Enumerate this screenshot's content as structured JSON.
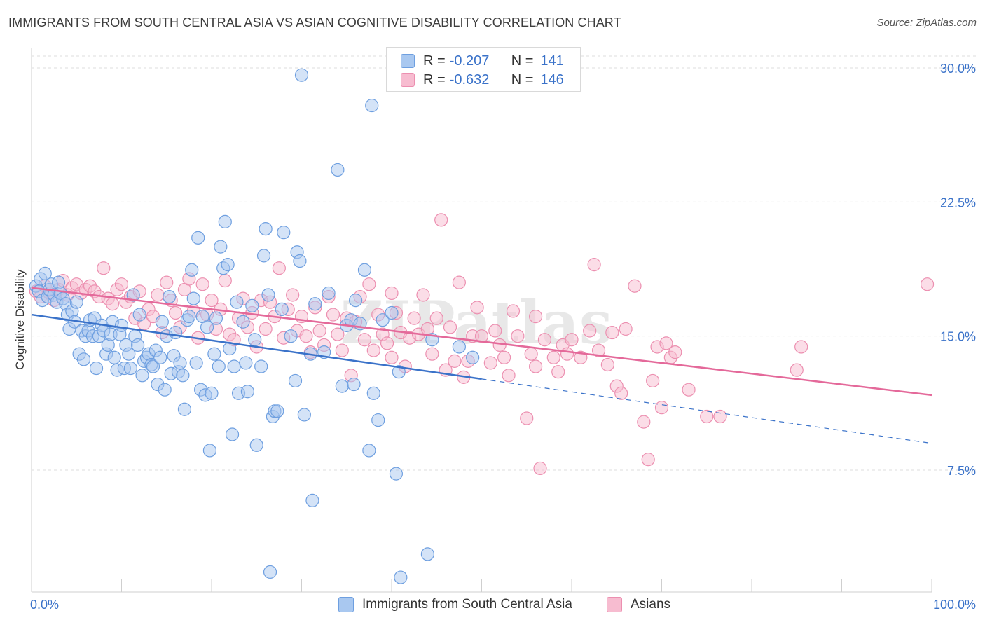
{
  "header": {
    "title": "IMMIGRANTS FROM SOUTH CENTRAL ASIA VS ASIAN COGNITIVE DISABILITY CORRELATION CHART",
    "source": "Source: ZipAtlas.com"
  },
  "legend": {
    "series1": {
      "r_label": "R =",
      "r_value": "-0.207",
      "n_label": "N =",
      "n_value": "141"
    },
    "series2": {
      "r_label": "R =",
      "r_value": "-0.632",
      "n_label": "N =",
      "n_value": "146"
    }
  },
  "colors": {
    "blue_fill": "#a9c8f0",
    "blue_stroke": "#6e9fe0",
    "blue_line": "#3a72c9",
    "pink_fill": "#f7bcd0",
    "pink_stroke": "#ec8fb0",
    "pink_line": "#e4699a",
    "value_text": "#3a72c9",
    "grid": "#dcdcdc"
  },
  "chart_data": {
    "type": "scatter",
    "title": "IMMIGRANTS FROM SOUTH CENTRAL ASIA VS ASIAN COGNITIVE DISABILITY CORRELATION CHART",
    "xlabel": "",
    "ylabel": "Cognitive Disability",
    "xlim": [
      0,
      100
    ],
    "ylim": [
      0,
      31
    ],
    "x_tick_labels": [
      "0.0%",
      "100.0%"
    ],
    "y_ticks": [
      7.5,
      15.0,
      22.5,
      30.0
    ],
    "y_tick_labels": [
      "7.5%",
      "15.0%",
      "22.5%",
      "30.0%"
    ],
    "grid": true,
    "legend_position": "top-center",
    "watermark": "ZIPatlas",
    "series": [
      {
        "name": "Immigrants from South Central Asia",
        "color": "#6e9fe0",
        "trend": {
          "x0": 0,
          "y0": 16.2,
          "x1": 50,
          "y1": 12.6,
          "dashed_to_x": 100,
          "dashed_to_y": 9.0
        },
        "points": [
          [
            0.5,
            17.8
          ],
          [
            0.8,
            17.5
          ],
          [
            1.0,
            18.2
          ],
          [
            1.2,
            17.0
          ],
          [
            1.5,
            18.5
          ],
          [
            1.8,
            17.2
          ],
          [
            2.0,
            17.6
          ],
          [
            2.2,
            17.9
          ],
          [
            2.5,
            17.3
          ],
          [
            2.8,
            16.9
          ],
          [
            3.0,
            18.0
          ],
          [
            3.2,
            17.4
          ],
          [
            3.5,
            17.1
          ],
          [
            3.8,
            16.8
          ],
          [
            4.0,
            16.2
          ],
          [
            4.2,
            15.4
          ],
          [
            4.5,
            16.4
          ],
          [
            4.8,
            15.8
          ],
          [
            5.0,
            16.9
          ],
          [
            5.3,
            14.0
          ],
          [
            5.6,
            15.3
          ],
          [
            5.8,
            13.7
          ],
          [
            6.0,
            15.0
          ],
          [
            6.3,
            15.3
          ],
          [
            6.5,
            15.9
          ],
          [
            6.8,
            15.0
          ],
          [
            7.0,
            16.0
          ],
          [
            7.2,
            13.2
          ],
          [
            7.5,
            15.0
          ],
          [
            7.8,
            15.6
          ],
          [
            8.0,
            15.3
          ],
          [
            8.3,
            14.0
          ],
          [
            8.5,
            14.5
          ],
          [
            8.8,
            15.1
          ],
          [
            9.0,
            15.8
          ],
          [
            9.2,
            13.8
          ],
          [
            9.5,
            13.1
          ],
          [
            9.8,
            15.1
          ],
          [
            10.0,
            15.6
          ],
          [
            10.3,
            13.2
          ],
          [
            10.5,
            14.5
          ],
          [
            10.8,
            14.0
          ],
          [
            11.0,
            13.2
          ],
          [
            11.3,
            17.3
          ],
          [
            11.5,
            15.0
          ],
          [
            11.8,
            14.5
          ],
          [
            12.0,
            16.2
          ],
          [
            12.3,
            12.8
          ],
          [
            12.5,
            13.6
          ],
          [
            12.8,
            13.8
          ],
          [
            13.0,
            14.0
          ],
          [
            13.3,
            13.4
          ],
          [
            13.5,
            13.3
          ],
          [
            13.8,
            14.2
          ],
          [
            14.0,
            12.3
          ],
          [
            14.3,
            13.8
          ],
          [
            14.5,
            15.8
          ],
          [
            14.8,
            12.0
          ],
          [
            15.0,
            15.0
          ],
          [
            15.3,
            17.2
          ],
          [
            15.5,
            12.9
          ],
          [
            15.8,
            13.9
          ],
          [
            16.0,
            15.2
          ],
          [
            16.3,
            13.0
          ],
          [
            16.5,
            13.5
          ],
          [
            16.8,
            12.8
          ],
          [
            17.0,
            10.9
          ],
          [
            17.3,
            15.9
          ],
          [
            17.5,
            16.1
          ],
          [
            17.8,
            18.7
          ],
          [
            18.0,
            17.1
          ],
          [
            18.3,
            13.5
          ],
          [
            18.5,
            20.5
          ],
          [
            18.8,
            12.0
          ],
          [
            19.0,
            16.1
          ],
          [
            19.3,
            11.7
          ],
          [
            19.5,
            15.5
          ],
          [
            19.8,
            8.6
          ],
          [
            20.0,
            11.8
          ],
          [
            20.3,
            14.0
          ],
          [
            20.5,
            16.0
          ],
          [
            20.8,
            13.3
          ],
          [
            21.0,
            20.0
          ],
          [
            21.3,
            18.8
          ],
          [
            21.5,
            21.4
          ],
          [
            21.8,
            19.0
          ],
          [
            22.0,
            14.3
          ],
          [
            22.3,
            9.5
          ],
          [
            22.5,
            13.3
          ],
          [
            22.8,
            16.9
          ],
          [
            23.0,
            11.8
          ],
          [
            23.5,
            15.8
          ],
          [
            23.8,
            13.5
          ],
          [
            24.0,
            11.9
          ],
          [
            24.5,
            16.7
          ],
          [
            24.8,
            14.8
          ],
          [
            25.0,
            8.9
          ],
          [
            25.5,
            13.3
          ],
          [
            25.8,
            19.5
          ],
          [
            26.0,
            21.0
          ],
          [
            26.3,
            17.3
          ],
          [
            26.8,
            10.5
          ],
          [
            27.0,
            10.8
          ],
          [
            27.3,
            10.8
          ],
          [
            27.8,
            16.5
          ],
          [
            28.0,
            20.8
          ],
          [
            28.8,
            15.0
          ],
          [
            29.3,
            12.5
          ],
          [
            29.5,
            19.7
          ],
          [
            29.8,
            19.2
          ],
          [
            30.0,
            29.6
          ],
          [
            30.3,
            10.6
          ],
          [
            31.0,
            14.0
          ],
          [
            31.2,
            5.8
          ],
          [
            31.5,
            16.8
          ],
          [
            32.5,
            14.1
          ],
          [
            33.0,
            17.4
          ],
          [
            34.0,
            24.3
          ],
          [
            34.5,
            12.2
          ],
          [
            35.0,
            15.6
          ],
          [
            35.5,
            15.9
          ],
          [
            36.0,
            17.0
          ],
          [
            36.5,
            15.7
          ],
          [
            37.0,
            18.7
          ],
          [
            37.5,
            8.6
          ],
          [
            37.8,
            27.9
          ],
          [
            38.0,
            11.8
          ],
          [
            38.5,
            10.3
          ],
          [
            39.0,
            15.9
          ],
          [
            40.0,
            16.3
          ],
          [
            40.5,
            7.3
          ],
          [
            44.0,
            2.8
          ],
          [
            26.5,
            1.8
          ],
          [
            41.0,
            1.5
          ],
          [
            47.5,
            14.4
          ],
          [
            49.0,
            13.8
          ],
          [
            40.8,
            13.0
          ],
          [
            44.5,
            14.8
          ],
          [
            35.8,
            12.3
          ]
        ]
      },
      {
        "name": "Asians",
        "color": "#ec8fb0",
        "trend": {
          "x0": 0,
          "y0": 17.7,
          "x1": 100,
          "y1": 11.7
        },
        "points": [
          [
            0.5,
            17.5
          ],
          [
            1.0,
            17.2
          ],
          [
            1.5,
            17.8
          ],
          [
            2.0,
            17.4
          ],
          [
            2.5,
            17.0
          ],
          [
            3.0,
            17.6
          ],
          [
            3.5,
            18.1
          ],
          [
            4.0,
            17.3
          ],
          [
            4.5,
            17.7
          ],
          [
            5.0,
            17.9
          ],
          [
            5.5,
            17.4
          ],
          [
            6.0,
            17.6
          ],
          [
            6.5,
            17.8
          ],
          [
            7.0,
            17.5
          ],
          [
            7.5,
            17.2
          ],
          [
            8.0,
            18.8
          ],
          [
            8.5,
            17.1
          ],
          [
            9.0,
            16.8
          ],
          [
            9.5,
            17.6
          ],
          [
            10.0,
            17.9
          ],
          [
            10.5,
            16.9
          ],
          [
            11.0,
            17.2
          ],
          [
            11.5,
            16.0
          ],
          [
            12.0,
            17.5
          ],
          [
            12.5,
            15.7
          ],
          [
            13.0,
            16.5
          ],
          [
            13.5,
            16.1
          ],
          [
            14.0,
            17.3
          ],
          [
            14.5,
            15.2
          ],
          [
            15.0,
            18.0
          ],
          [
            15.5,
            17.0
          ],
          [
            16.0,
            16.3
          ],
          [
            16.5,
            15.5
          ],
          [
            17.0,
            17.6
          ],
          [
            17.5,
            18.2
          ],
          [
            18.0,
            16.4
          ],
          [
            18.5,
            14.9
          ],
          [
            19.0,
            17.9
          ],
          [
            19.5,
            16.2
          ],
          [
            20.0,
            17.0
          ],
          [
            20.5,
            15.4
          ],
          [
            21.0,
            16.5
          ],
          [
            21.5,
            18.1
          ],
          [
            22.0,
            15.1
          ],
          [
            22.5,
            14.8
          ],
          [
            23.0,
            16.0
          ],
          [
            23.5,
            17.1
          ],
          [
            24.0,
            15.5
          ],
          [
            24.5,
            16.3
          ],
          [
            25.0,
            14.4
          ],
          [
            25.5,
            17.0
          ],
          [
            26.0,
            15.4
          ],
          [
            26.5,
            16.9
          ],
          [
            27.0,
            16.1
          ],
          [
            27.5,
            18.8
          ],
          [
            28.0,
            14.9
          ],
          [
            28.5,
            16.5
          ],
          [
            29.0,
            17.3
          ],
          [
            29.5,
            15.3
          ],
          [
            30.0,
            16.1
          ],
          [
            30.5,
            15.0
          ],
          [
            31.0,
            14.1
          ],
          [
            31.5,
            16.6
          ],
          [
            32.0,
            15.3
          ],
          [
            32.5,
            14.5
          ],
          [
            33.0,
            17.2
          ],
          [
            33.5,
            16.2
          ],
          [
            34.0,
            15.1
          ],
          [
            34.5,
            14.2
          ],
          [
            35.0,
            16.0
          ],
          [
            35.5,
            12.8
          ],
          [
            36.0,
            15.8
          ],
          [
            36.5,
            17.2
          ],
          [
            37.0,
            14.8
          ],
          [
            37.5,
            17.9
          ],
          [
            38.0,
            14.2
          ],
          [
            38.5,
            16.2
          ],
          [
            39.0,
            15.1
          ],
          [
            39.5,
            14.6
          ],
          [
            40.0,
            13.8
          ],
          [
            40.5,
            16.3
          ],
          [
            41.0,
            15.2
          ],
          [
            41.5,
            13.3
          ],
          [
            42.0,
            14.9
          ],
          [
            42.5,
            16.0
          ],
          [
            43.0,
            15.1
          ],
          [
            43.5,
            17.3
          ],
          [
            44.0,
            15.4
          ],
          [
            44.5,
            14.0
          ],
          [
            45.0,
            16.0
          ],
          [
            45.5,
            21.5
          ],
          [
            46.0,
            13.1
          ],
          [
            46.5,
            15.5
          ],
          [
            47.0,
            13.6
          ],
          [
            47.5,
            18.0
          ],
          [
            48.0,
            12.7
          ],
          [
            48.5,
            13.6
          ],
          [
            49.0,
            15.0
          ],
          [
            49.5,
            16.6
          ],
          [
            50.0,
            15.0
          ],
          [
            51.0,
            13.5
          ],
          [
            51.5,
            15.3
          ],
          [
            52.0,
            14.5
          ],
          [
            52.5,
            13.8
          ],
          [
            53.0,
            12.8
          ],
          [
            53.5,
            16.4
          ],
          [
            54.0,
            15.0
          ],
          [
            55.0,
            10.4
          ],
          [
            55.5,
            14.0
          ],
          [
            56.0,
            13.3
          ],
          [
            56.5,
            7.6
          ],
          [
            57.0,
            14.8
          ],
          [
            58.0,
            13.8
          ],
          [
            58.5,
            13.0
          ],
          [
            59.0,
            14.5
          ],
          [
            59.5,
            14.0
          ],
          [
            60.0,
            14.8
          ],
          [
            61.0,
            13.8
          ],
          [
            62.0,
            15.3
          ],
          [
            62.5,
            19.0
          ],
          [
            63.0,
            14.2
          ],
          [
            64.0,
            13.4
          ],
          [
            65.0,
            12.2
          ],
          [
            65.5,
            11.8
          ],
          [
            66.0,
            15.4
          ],
          [
            67.0,
            17.8
          ],
          [
            68.0,
            10.2
          ],
          [
            68.5,
            8.1
          ],
          [
            69.0,
            12.5
          ],
          [
            69.5,
            14.4
          ],
          [
            70.0,
            11.0
          ],
          [
            70.5,
            14.6
          ],
          [
            71.0,
            13.8
          ],
          [
            71.5,
            14.1
          ],
          [
            73.0,
            12.0
          ],
          [
            75.0,
            10.5
          ],
          [
            76.5,
            10.5
          ],
          [
            85.0,
            13.1
          ],
          [
            85.5,
            14.4
          ],
          [
            99.5,
            17.9
          ],
          [
            56.0,
            16.1
          ],
          [
            40.0,
            17.4
          ],
          [
            64.5,
            15.2
          ]
        ]
      }
    ]
  },
  "bottom_legend": {
    "item1": "Immigrants from South Central Asia",
    "item2": "Asians"
  }
}
